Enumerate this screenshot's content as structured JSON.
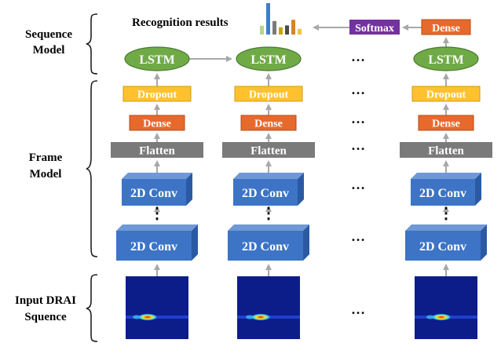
{
  "diagram": {
    "sections": {
      "sequence_model": [
        "Sequence",
        "Model"
      ],
      "frame_model": [
        "Frame",
        "Model"
      ],
      "input": [
        "Input DRAI",
        "Squence"
      ]
    },
    "recognition_results_label": "Recognition results",
    "softmax_label": "Softmax",
    "top_dense_label": "Dense",
    "lstm_label": "LSTM",
    "dropout_label": "Dropout",
    "dense_label": "Dense",
    "flatten_label": "Flatten",
    "conv_label": "2D Conv",
    "vertical_ellipsis": "⋮",
    "horizontal_ellipsis": "…",
    "result_bar_values": [
      0.28,
      1.0,
      0.43,
      0.23,
      0.29,
      0.47,
      0.18
    ],
    "colors": {
      "lstm": "#6faa47",
      "lstm_border": "#4a7a2e",
      "dropout": "#ffc22e",
      "dense": "#e8692c",
      "flatten": "#7a7a7a",
      "softmax": "#7232a0",
      "conv_front": "#3d74c5",
      "conv_top": "#6f98d6",
      "conv_side": "#2b5aa3",
      "arrow": "#a8a8a8",
      "bars": [
        "#b8d48c",
        "#3f7ec9",
        "#7a7a7a",
        "#c9a400",
        "#4a4a4a",
        "#d9822b",
        "#f0c24e"
      ]
    }
  }
}
